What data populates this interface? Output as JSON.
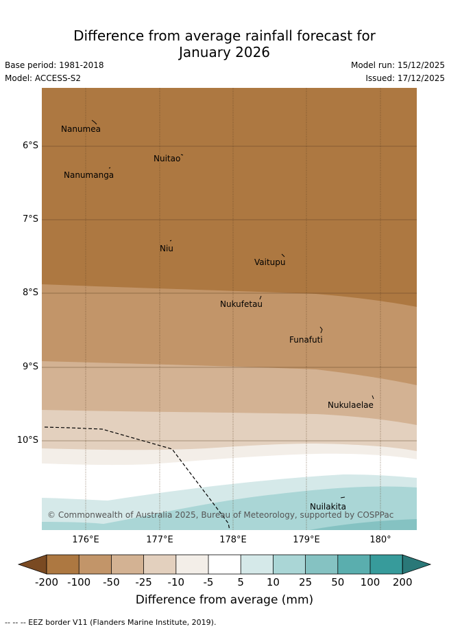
{
  "title_line1": "Difference from average rainfall forecast for",
  "title_line2": "January 2026",
  "base_period": "Base period: 1981-2018",
  "model": "Model: ACCESS-S2",
  "model_run": "Model run: 15/12/2025",
  "issued": "Issued: 17/12/2025",
  "copyright": "© Commonwealth of Australia 2025, Bureau of Meteorology, supported by COSPPac",
  "lat_labels": [
    "6°S",
    "7°S",
    "8°S",
    "9°S",
    "10°S"
  ],
  "lon_labels": [
    "176°E",
    "177°E",
    "178°E",
    "179°E",
    "180°"
  ],
  "places": {
    "nanumea": "Nanumea",
    "nuitao": "Nuitao",
    "nanumanga": "Nanumanga",
    "niu": "Niu",
    "vaitupu": "Vaitupu",
    "nukufetau": "Nukufetau",
    "funafuti": "Funafuti",
    "nukulaelae": "Nukulaelae",
    "nuilakita": "Nuilakita"
  },
  "legend": {
    "title": "Difference from average (mm)",
    "ticks": [
      "-200",
      "-100",
      "-50",
      "-25",
      "-10",
      "-5",
      "5",
      "10",
      "25",
      "50",
      "100",
      "200"
    ],
    "colors": [
      "#7a4a22",
      "#ad7841",
      "#c29569",
      "#d3b293",
      "#e3d0be",
      "#f3eee8",
      "#ffffff",
      "#d5e9e9",
      "#aad6d6",
      "#85c2c2",
      "#5aaeae",
      "#379b9b",
      "#2a7878"
    ]
  },
  "footer": "--  --  -- EEZ border V11 (Flanders Marine Institute, 2019)."
}
